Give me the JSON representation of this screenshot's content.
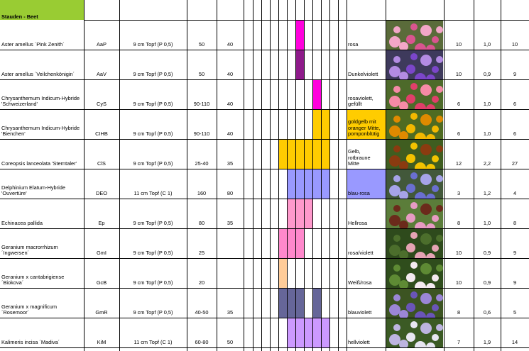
{
  "section_title": "Stauden - Beet",
  "colors": {
    "header_green": "#99cc33",
    "grid": "#000000"
  },
  "rows": [
    {
      "name": "Aster amellus ´Pink Zenith´",
      "code": "AaP",
      "pot": "9 cm Topf (P 0,5)",
      "height": "50",
      "spacing": "40",
      "bloom": {
        "cols": [
          2
        ],
        "color": "#ff00dd"
      },
      "color_label": "rosa",
      "label_bg": "",
      "photo": "pink-aster-photo",
      "n1": "10",
      "n2": "1,0",
      "n3": "10",
      "photo_colors": [
        "#d9558f",
        "#f3a6c8",
        "#5a6b3a"
      ]
    },
    {
      "name": "Aster amellus ´Veilchenkönigin´",
      "code": "AaV",
      "pot": "9 cm Topf (P 0,5)",
      "height": "50",
      "spacing": "40",
      "bloom": {
        "cols": [
          2
        ],
        "color": "#8e1a8a"
      },
      "color_label": "Dunkelviolett",
      "label_bg": "",
      "photo": "violet-aster-photo",
      "n1": "10",
      "n2": "0,9",
      "n3": "9",
      "photo_colors": [
        "#7b46c9",
        "#b38be3",
        "#3e3a5c"
      ]
    },
    {
      "name": "Chrysanthemum Indicum-Hybride\n'Schweizerland'",
      "code": "CyS",
      "pot": "9 cm Topf (P 0,5)",
      "height": "90-110",
      "spacing": "40",
      "bloom": {
        "cols": [
          4
        ],
        "color": "#ff00dd"
      },
      "color_label": "rosaviolett,\ngefüllt",
      "label_bg": "",
      "photo": "pink-chrysanthemum-photo",
      "n1": "6",
      "n2": "1,0",
      "n3": "6",
      "photo_colors": [
        "#e03f6a",
        "#f58aa6",
        "#4d6a2a"
      ]
    },
    {
      "name": "Chrysanthemum Indicum-Hybride\n'Bienchen'",
      "code": "CIHB",
      "pot": "9 cm Topf (P 0,5)",
      "height": "90-110",
      "spacing": "40",
      "bloom": {
        "cols": [
          4,
          5
        ],
        "color": "#ffcc00"
      },
      "color_label": "goldgelb mit\noranger Mitte,\npomponblütig",
      "label_bg": "#ffcc00",
      "photo": "yellow-chrysanthemum-photo",
      "n1": "6",
      "n2": "1,0",
      "n3": "6",
      "photo_colors": [
        "#f2b800",
        "#e08a00",
        "#4f6b22"
      ]
    },
    {
      "name": "Coreopsis lanceolata 'Sterntaler'",
      "code": "ClS",
      "pot": "9 cm Topf (P 0,5)",
      "height": "25-40",
      "spacing": "35",
      "bloom": {
        "cols": [
          0,
          1,
          2,
          3,
          4,
          5
        ],
        "color": "#ffcc00"
      },
      "color_label": "Gelb, rotbraune\nMitte",
      "label_bg": "",
      "photo": "coreopsis-photo",
      "n1": "12",
      "n2": "2,2",
      "n3": "27",
      "photo_colors": [
        "#f2c200",
        "#8a3b10",
        "#3f5d20"
      ]
    },
    {
      "name": "Delphinium Elatum-Hybride\n'Ouvertüre'",
      "code": "DEO",
      "pot": "11 cm Topf (C 1)",
      "height": "160",
      "spacing": "80",
      "bloom": {
        "cols": [
          1,
          2,
          3,
          4,
          5
        ],
        "color": "#9999ff"
      },
      "color_label": "blau-rosa",
      "label_bg": "#9999ff",
      "photo": "delphinium-photo",
      "n1": "3",
      "n2": "1,2",
      "n3": "4",
      "photo_colors": [
        "#6a6fd0",
        "#a6a3e8",
        "#42583a"
      ]
    },
    {
      "name": "Echinacea pallida",
      "code": "Ep",
      "pot": "9 cm Topf (P 0,5)",
      "height": "80",
      "spacing": "35",
      "bloom": {
        "cols": [
          1,
          2,
          3
        ],
        "color": "#ff99cc"
      },
      "color_label": "Hellrosa",
      "label_bg": "",
      "photo": "echinacea-photo",
      "n1": "8",
      "n2": "1,0",
      "n3": "8",
      "photo_colors": [
        "#e79bc3",
        "#6b2a1b",
        "#5b7d3a"
      ]
    },
    {
      "name": "Geranium macrorrhizum ´Ingwersen´",
      "code": "GmI",
      "pot": "9 cm Topf (P 0,5)",
      "height": "25",
      "spacing": "",
      "bloom": {
        "cols": [
          0,
          1,
          2
        ],
        "color": "#ff88cc"
      },
      "color_label": "rosa/violett",
      "label_bg": "",
      "photo": "geranium-macrorrhizum-photo",
      "n1": "10",
      "n2": "0,9",
      "n3": "9",
      "photo_colors": [
        "#e5a3b4",
        "#4c6e2c",
        "#2e4a1c"
      ]
    },
    {
      "name": "Geranium x cantabrigiense ´Biokova´",
      "code": "GcB",
      "pot": "9 cm Topf (P 0,5)",
      "height": "20",
      "spacing": "",
      "bloom": {
        "cols": [
          0
        ],
        "color": "#ffcc99"
      },
      "color_label": "Weiß/rosa",
      "label_bg": "",
      "photo": "geranium-biokova-photo",
      "n1": "10",
      "n2": "0,9",
      "n3": "9",
      "photo_colors": [
        "#f4eaf0",
        "#5e8a34",
        "#2f4d1c"
      ]
    },
    {
      "name": "Geranium x magnificum ´Rosemoor´",
      "code": "GmR",
      "pot": "9 cm Topf (P 0,5)",
      "height": "40-50",
      "spacing": "35",
      "bloom": {
        "cols": [
          0,
          1,
          2,
          3,
          4
        ],
        "color": "#666699",
        "gap": [
          3
        ]
      },
      "color_label": "blauviolett",
      "label_bg": "",
      "photo": "geranium-rosemoor-photo",
      "n1": "8",
      "n2": "0,6",
      "n3": "5",
      "photo_colors": [
        "#6a55b8",
        "#9b86d6",
        "#3c5422"
      ]
    },
    {
      "name": "Kalimeris incisa ´Madiva´",
      "code": "KiM",
      "pot": "11 cm Topf (C 1)",
      "height": "60-80",
      "spacing": "50",
      "bloom": {
        "cols": [
          1,
          2,
          3,
          4,
          5
        ],
        "color": "#cc99ff"
      },
      "color_label": "hellviolett",
      "label_bg": "",
      "photo": "kalimeris-photo",
      "n1": "7",
      "n2": "1,9",
      "n3": "14",
      "photo_colors": [
        "#e8e6f2",
        "#bdb4e0",
        "#3b5a24"
      ]
    }
  ]
}
